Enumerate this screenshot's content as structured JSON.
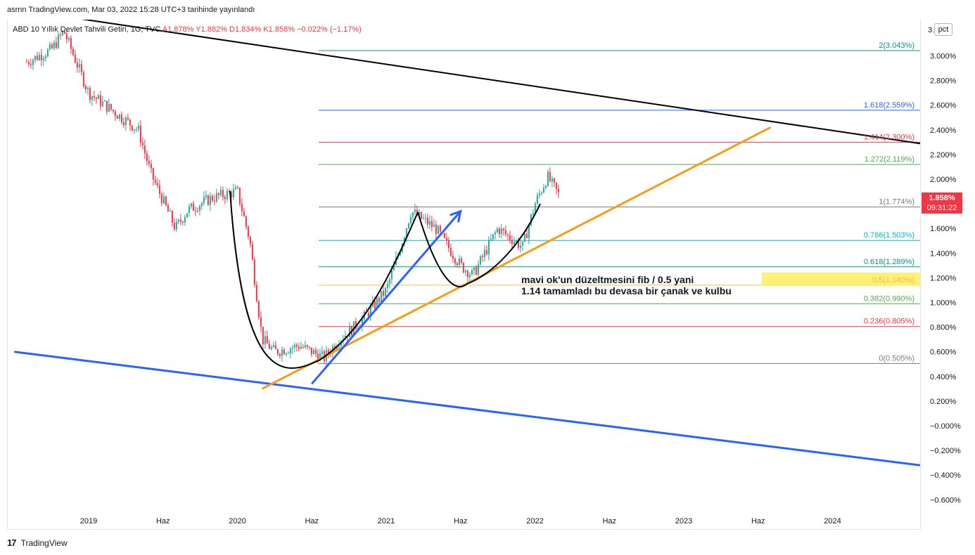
{
  "header": {
    "published": "asrnn TradingView.com, Mar 03, 2022 15:28 UTC+3 tarihinde yayınlandı"
  },
  "legend": {
    "symbol": "ABD 10 Yıllık Devlet Tahvili Getiri, 1G, TVC",
    "open": "A1.878%",
    "high": "Y1.882%",
    "low": "D1.834%",
    "close": "K1.858%",
    "change": "−0.022% (−1.17%)"
  },
  "price_axis": {
    "scale_button": "pct",
    "top_label": "3.",
    "current_price": "1.858%",
    "countdown": "09:31:22"
  },
  "annotation": {
    "line1": "mavi ok'un düzeltmesini fib / 0.5 yani",
    "line2": "1.14 tamamladı bu devasa bir çanak ve kulbu"
  },
  "footer": {
    "logo": "17",
    "brand": "TradingView"
  },
  "colors": {
    "up": "#26a69a",
    "down": "#f23645",
    "black_line": "#000000",
    "blue_line": "#2962ff",
    "orange_line": "#f89b1c",
    "highlight": "#fff176"
  },
  "chart_data": {
    "type": "candlestick",
    "title": "ABD 10 Yıllık Devlet Tahvili Getiri, 1G, TVC",
    "x_ticks": [
      "2019",
      "Haz",
      "2020",
      "Haz",
      "2021",
      "Haz",
      "2022",
      "Haz",
      "2023",
      "Haz",
      "2024"
    ],
    "y_ticks": [
      "3.000%",
      "2.800%",
      "2.600%",
      "2.400%",
      "2.200%",
      "2.000%",
      "1.800%",
      "1.600%",
      "1.400%",
      "1.200%",
      "1.000%",
      "0.800%",
      "0.600%",
      "0.400%",
      "0.200%",
      "−0.000%",
      "−0.200%",
      "−0.400%",
      "−0.600%"
    ],
    "ylim": [
      -0.6,
      3.15
    ],
    "series": [
      {
        "name": "ABD 10 Yıllık Devlet Tahvili Getiri",
        "x": [
          "2018-08",
          "2018-10",
          "2018-11",
          "2019-01",
          "2019-03",
          "2019-05",
          "2019-06",
          "2019-08",
          "2019-09",
          "2019-11",
          "2020-01",
          "2020-02",
          "2020-03",
          "2020-04",
          "2020-06",
          "2020-08",
          "2020-09",
          "2020-11",
          "2021-01",
          "2021-02",
          "2021-03",
          "2021-05",
          "2021-07",
          "2021-08",
          "2021-10",
          "2021-12",
          "2022-01",
          "2022-02",
          "2022-03"
        ],
        "values": [
          2.95,
          3.05,
          3.2,
          2.7,
          2.55,
          2.4,
          2.05,
          1.6,
          1.75,
          1.85,
          1.9,
          1.5,
          0.7,
          0.6,
          0.65,
          0.55,
          0.68,
          0.85,
          1.1,
          1.4,
          1.74,
          1.6,
          1.3,
          1.22,
          1.6,
          1.45,
          1.8,
          2.02,
          1.858
        ]
      }
    ],
    "fib_levels": [
      {
        "label": "2(3.043%)",
        "value": 3.043
      },
      {
        "label": "1.618(2.559%)",
        "value": 2.559
      },
      {
        "label": "1.414(2.300%)",
        "value": 2.3
      },
      {
        "label": "1.272(2.119%)",
        "value": 2.119
      },
      {
        "label": "1(1.774%)",
        "value": 1.774
      },
      {
        "label": "0.786(1.503%)",
        "value": 1.503
      },
      {
        "label": "0.618(1.289%)",
        "value": 1.289
      },
      {
        "label": "0.5(1.140%)",
        "value": 1.14
      },
      {
        "label": "0.382(0.990%)",
        "value": 0.99
      },
      {
        "label": "0.236(0.805%)",
        "value": 0.805
      },
      {
        "label": "0(0.505%)",
        "value": 0.505
      }
    ],
    "trendlines": [
      {
        "color": "black",
        "from": [
          "2018-07",
          3.38
        ],
        "to": [
          "2024-12",
          2.23
        ]
      },
      {
        "color": "blue",
        "from": [
          "2018-07",
          0.6
        ],
        "to": [
          "2024-12",
          -0.37
        ]
      },
      {
        "color": "orange",
        "from": [
          "2020-03",
          0.3
        ],
        "to": [
          "2023-08",
          2.42
        ]
      },
      {
        "color": "blue_arrow",
        "from": [
          "2020-07",
          0.34
        ],
        "to": [
          "2021-07",
          1.74
        ]
      }
    ]
  }
}
